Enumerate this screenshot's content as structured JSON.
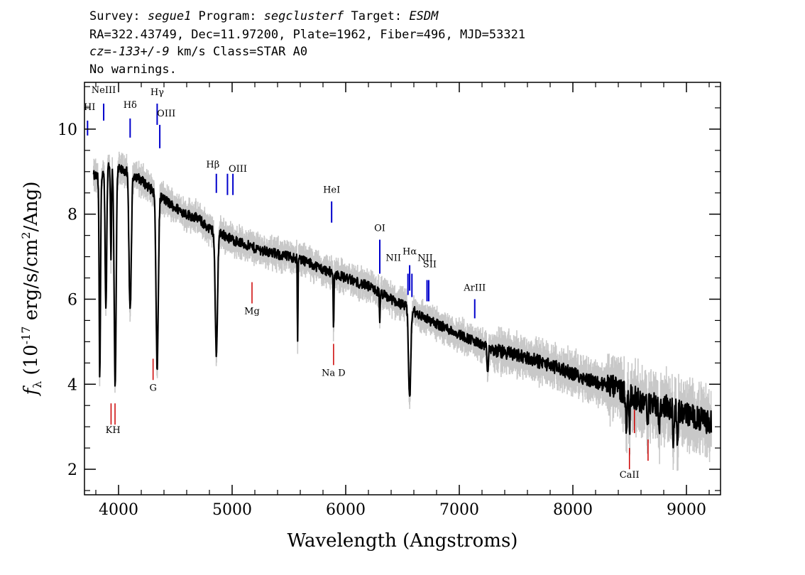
{
  "header": {
    "line1": [
      {
        "text": "Survey: ",
        "italic": false
      },
      {
        "text": "segue1",
        "italic": true
      },
      {
        "text": " Program: ",
        "italic": false
      },
      {
        "text": "segclusterf",
        "italic": true
      },
      {
        "text": " Target: ",
        "italic": false
      },
      {
        "text": "ESDM",
        "italic": true
      }
    ],
    "line2": "RA=322.43749, Dec=11.97200, Plate=1962, Fiber=496, MJD=53321",
    "line3": [
      {
        "text": "cz=-133+/-9",
        "italic": true
      },
      {
        "text": " km/s Class=STAR A0",
        "italic": false
      }
    ],
    "line4": "No warnings."
  },
  "colors": {
    "spectrum": "#000000",
    "error": "#c8c8c8",
    "emission": "#0000cc",
    "absorption": "#cc0000"
  },
  "chart_data": {
    "type": "line",
    "xlabel": "Wavelength (Angstroms)",
    "ylabel_parts": {
      "symbol": "f",
      "sub": "λ",
      "prefix": " (10",
      "exp": "-17",
      "mid": " erg/s/cm",
      "exp2": "2",
      "suffix": "/Ang)"
    },
    "xlim": [
      3700,
      9300
    ],
    "ylim": [
      1.4,
      11.1
    ],
    "xticks": [
      4000,
      5000,
      6000,
      7000,
      8000,
      9000
    ],
    "xtick_labels": [
      "4000",
      "5000",
      "6000",
      "7000",
      "8000",
      "9000"
    ],
    "yticks": [
      2,
      4,
      6,
      8,
      10
    ],
    "ytick_labels": [
      "2",
      "4",
      "6",
      "8",
      "10"
    ],
    "continuum": {
      "x": [
        3800,
        3850,
        3900,
        3950,
        4000,
        4100,
        4200,
        4300,
        4400,
        4500,
        4600,
        4700,
        4800,
        4900,
        5000,
        5200,
        5400,
        5600,
        5800,
        6000,
        6200,
        6400,
        6550,
        6700,
        6900,
        7100,
        7300,
        7500,
        7800,
        8000,
        8200,
        8400,
        8600,
        8800,
        9000,
        9200
      ],
      "y": [
        8.9,
        8.8,
        9.2,
        9.1,
        9.05,
        9.0,
        8.8,
        8.55,
        8.35,
        8.15,
        8.0,
        7.9,
        7.65,
        7.55,
        7.4,
        7.2,
        7.05,
        6.95,
        6.7,
        6.5,
        6.3,
        6.0,
        5.8,
        5.55,
        5.3,
        5.05,
        4.8,
        4.7,
        4.45,
        4.25,
        4.05,
        3.9,
        3.6,
        3.5,
        3.3,
        3.1
      ]
    },
    "absorption_features": [
      {
        "x": 3835,
        "depth": 4.7,
        "width": 8
      },
      {
        "x": 3889,
        "depth": 3.3,
        "width": 10
      },
      {
        "x": 3933,
        "depth": 2.2,
        "width": 6
      },
      {
        "x": 3970,
        "depth": 5.2,
        "width": 12
      },
      {
        "x": 4102,
        "depth": 3.3,
        "width": 14
      },
      {
        "x": 4340,
        "depth": 4.1,
        "width": 14
      },
      {
        "x": 4861,
        "depth": 2.9,
        "width": 14
      },
      {
        "x": 5577,
        "depth": 2.0,
        "width": 4
      },
      {
        "x": 5893,
        "depth": 1.2,
        "width": 5
      },
      {
        "x": 6300,
        "depth": 0.8,
        "width": 4
      },
      {
        "x": 6563,
        "depth": 2.1,
        "width": 14
      },
      {
        "x": 7250,
        "depth": 0.6,
        "width": 8
      },
      {
        "x": 8470,
        "depth": 0.9,
        "width": 8
      },
      {
        "x": 8500,
        "depth": 0.8,
        "width": 6
      },
      {
        "x": 8660,
        "depth": 0.7,
        "width": 6
      },
      {
        "x": 8760,
        "depth": 0.7,
        "width": 6
      },
      {
        "x": 8885,
        "depth": 0.9,
        "width": 6
      },
      {
        "x": 8920,
        "depth": 1.0,
        "width": 6
      }
    ],
    "emission_lines": [
      {
        "label": "HI",
        "x": 3727,
        "y_top": 10.2,
        "y_bot": 9.85,
        "label_y": 10.45,
        "label_x": 3745
      },
      {
        "label": "NeIII",
        "x": 3869,
        "y_top": 10.6,
        "y_bot": 10.2,
        "label_y": 10.85,
        "label_x": 3869
      },
      {
        "label": "Hδ",
        "x": 4102,
        "y_top": 10.25,
        "y_bot": 9.8,
        "label_y": 10.5,
        "label_x": 4102
      },
      {
        "label": "Hγ",
        "x": 4340,
        "y_top": 10.6,
        "y_bot": 10.1,
        "label_y": 10.8,
        "label_x": 4340
      },
      {
        "label": "OIII",
        "x": 4363,
        "y_top": 10.1,
        "y_bot": 9.55,
        "label_y": 10.3,
        "label_x": 4420
      },
      {
        "label": "Hβ",
        "x": 4861,
        "y_top": 8.95,
        "y_bot": 8.5,
        "label_y": 9.1,
        "label_x": 4830
      },
      {
        "label": "OIII",
        "x": 4959,
        "y_top": 8.95,
        "y_bot": 8.45,
        "label_y": 9.0,
        "label_x": 5050
      },
      {
        "label": "",
        "x": 5007,
        "y_top": 8.95,
        "y_bot": 8.45,
        "label_y": 0,
        "label_x": 0
      },
      {
        "label": "HeI",
        "x": 5876,
        "y_top": 8.3,
        "y_bot": 7.8,
        "label_y": 8.5,
        "label_x": 5876
      },
      {
        "label": "OI",
        "x": 6300,
        "y_top": 7.4,
        "y_bot": 6.6,
        "label_y": 7.6,
        "label_x": 6300
      },
      {
        "label": "NII",
        "x": 6548,
        "y_top": 6.6,
        "y_bot": 6.1,
        "label_y": 6.9,
        "label_x": 6420
      },
      {
        "label": "Hα",
        "x": 6563,
        "y_top": 6.8,
        "y_bot": 6.2,
        "label_y": 7.05,
        "label_x": 6563
      },
      {
        "label": "",
        "x": 6583,
        "y_top": 6.6,
        "y_bot": 6.05,
        "label_y": 0,
        "label_x": 0
      },
      {
        "label": "NII",
        "x": 6716,
        "y_top": 6.45,
        "y_bot": 5.95,
        "label_y": 6.9,
        "label_x": 6700
      },
      {
        "label": "SII",
        "x": 6731,
        "y_top": 6.45,
        "y_bot": 5.95,
        "label_y": 6.75,
        "label_x": 6740
      },
      {
        "label": "ArIII",
        "x": 7136,
        "y_top": 6.0,
        "y_bot": 5.55,
        "label_y": 6.2,
        "label_x": 7136
      }
    ],
    "absorption_lines": [
      {
        "label": "KH",
        "x": 3934,
        "x2": 3969,
        "y_top": 3.55,
        "y_bot": 3.05,
        "label_y": 2.85,
        "label_x": 3951
      },
      {
        "label": "G",
        "x": 4304,
        "y_top": 4.6,
        "y_bot": 4.1,
        "label_y": 3.85,
        "label_x": 4304
      },
      {
        "label": "Mg",
        "x": 5175,
        "y_top": 6.4,
        "y_bot": 5.9,
        "label_y": 5.65,
        "label_x": 5175
      },
      {
        "label": "Na D",
        "x": 5893,
        "y_top": 4.95,
        "y_bot": 4.45,
        "label_y": 4.2,
        "label_x": 5893
      },
      {
        "label": "CaII",
        "x": 8498,
        "y_top": 2.5,
        "y_bot": 2.0,
        "label_y": 1.8,
        "label_x": 8498
      },
      {
        "label": "",
        "x": 8542,
        "y_top": 3.4,
        "y_bot": 2.85,
        "label_y": 0,
        "label_x": 0
      },
      {
        "label": "",
        "x": 8662,
        "y_top": 2.7,
        "y_bot": 2.2,
        "label_y": 0,
        "label_x": 0
      }
    ]
  }
}
